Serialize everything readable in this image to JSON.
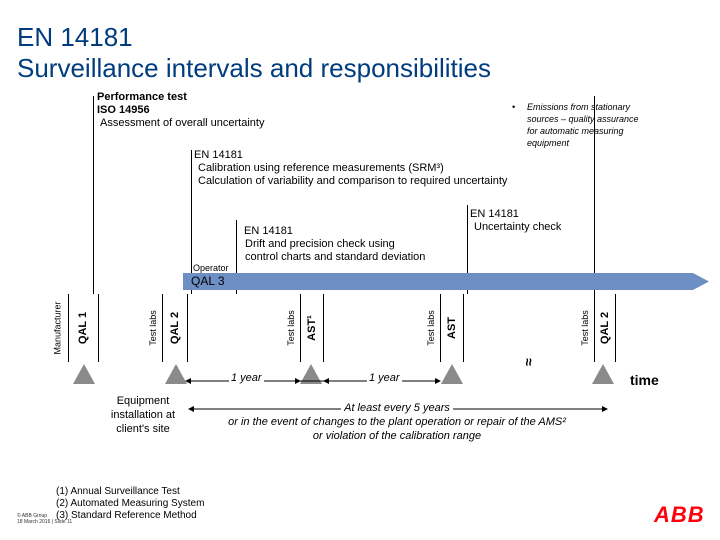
{
  "title_line1": "EN 14181",
  "title_line2": "Surveillance intervals and responsibilities",
  "perf_test": {
    "line1": "Performance test",
    "line2": "ISO 14956",
    "line3": "Assessment of overall uncertainty"
  },
  "emissions_note": {
    "bullet": "•",
    "line1": "Emissions from stationary",
    "line2": "sources – quality assurance",
    "line3": "for automatic measuring",
    "line4": "equipment"
  },
  "calibration": {
    "line1": "EN 14181",
    "line2": "Calibration using reference measurements (SRM³)",
    "line3": "Calculation of variability and comparison to required uncertainty"
  },
  "uncertainty_check": {
    "line1": "EN 14181",
    "line2": "Uncertainty check"
  },
  "drift": {
    "line1": "EN 14181",
    "line2": "Drift and precision check using",
    "line3": "control charts and standard deviation"
  },
  "operator_label": "Operator",
  "qal3_label": "QAL 3",
  "columns": {
    "qal1": {
      "who": "Manufacturer",
      "what": "QAL 1"
    },
    "qal2a": {
      "who": "Test labs",
      "what": "QAL 2"
    },
    "ast1": {
      "who": "Test labs",
      "what": "AST¹"
    },
    "ast": {
      "who": "Test labs",
      "what": "AST"
    },
    "qal2b": {
      "who": "Test labs",
      "what": "QAL 2"
    }
  },
  "interval1": "1 year",
  "interval2": "1 year",
  "break_mark": "≈",
  "time_label": "time",
  "equipment": {
    "line1": "Equipment",
    "line2": "installation at",
    "line3": "client's site"
  },
  "five_years": {
    "line1": "At least every 5 years",
    "line2": "or in the event of changes to the plant operation or repair of the AMS²",
    "line3": "or violation of the calibration range"
  },
  "footnotes": {
    "f1": "(1) Annual Surveillance Test",
    "f2": "(2) Automated Measuring System",
    "f3": "(3) Standard Reference Method"
  },
  "copyright": {
    "line1": "© ABB Group",
    "line2": "18 March 2016 | Slide 11"
  },
  "logo_text": "ABB",
  "colors": {
    "title": "#003c7e",
    "band": "#6d8fc4",
    "marker": "#8a8a8a",
    "logo": "#ff000f"
  }
}
